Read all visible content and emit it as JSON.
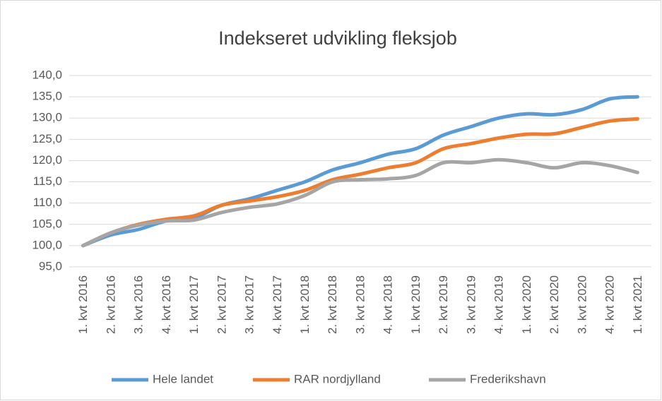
{
  "chart_data": {
    "type": "line",
    "title": "Indekseret udvikling fleksjob",
    "categories": [
      "1. kvt 2016",
      "2. kvt 2016",
      "3. kvt 2016",
      "4. kvt 2016",
      "1. kvt 2017",
      "2. kvt 2017",
      "3. kvt 2017",
      "4. kvt 2017",
      "1. kvt 2018",
      "2. kvt 2018",
      "3. kvt 2018",
      "4. kvt 2018",
      "1. kvt 2019",
      "2. kvt 2019",
      "3. kvt 2019",
      "4. kvt 2019",
      "1. kvt 2020",
      "2. kvt 2020",
      "3. kvt 2020",
      "4. kvt 2020",
      "1. kvt 2021"
    ],
    "series": [
      {
        "name": "Hele landet",
        "color": "#5b9bd5",
        "values": [
          100,
          102.5,
          103.8,
          105.8,
          106.5,
          109.5,
          111,
          113,
          115,
          117.8,
          119.5,
          121.5,
          122.8,
          126,
          128,
          130,
          131,
          130.8,
          132,
          134.5,
          135
        ]
      },
      {
        "name": "RAR nordjylland",
        "color": "#ed7d31",
        "values": [
          100,
          103,
          105,
          106.2,
          107,
          109.5,
          110.5,
          111.5,
          113,
          115.5,
          116.8,
          118.3,
          119.5,
          122.8,
          124,
          125.3,
          126.2,
          126.3,
          127.8,
          129.3,
          129.8
        ]
      },
      {
        "name": "Frederikshavn",
        "color": "#a5a5a5",
        "values": [
          100,
          103,
          104.8,
          105.8,
          106,
          107.8,
          109,
          109.8,
          111.8,
          115,
          115.5,
          115.7,
          116.5,
          119.5,
          119.5,
          120.2,
          119.5,
          118.3,
          119.5,
          118.8,
          117.2
        ]
      }
    ],
    "ylim": [
      95,
      140
    ],
    "yticks": [
      {
        "value": 95,
        "label": "95,0"
      },
      {
        "value": 100,
        "label": "100,0"
      },
      {
        "value": 105,
        "label": "105,0"
      },
      {
        "value": 110,
        "label": "110,0"
      },
      {
        "value": 115,
        "label": "115,0"
      },
      {
        "value": 120,
        "label": "120,0"
      },
      {
        "value": 125,
        "label": "125,0"
      },
      {
        "value": 130,
        "label": "130,0"
      },
      {
        "value": 135,
        "label": "135,0"
      },
      {
        "value": 140,
        "label": "140,0"
      }
    ],
    "grid": true,
    "legend": "bottom"
  }
}
